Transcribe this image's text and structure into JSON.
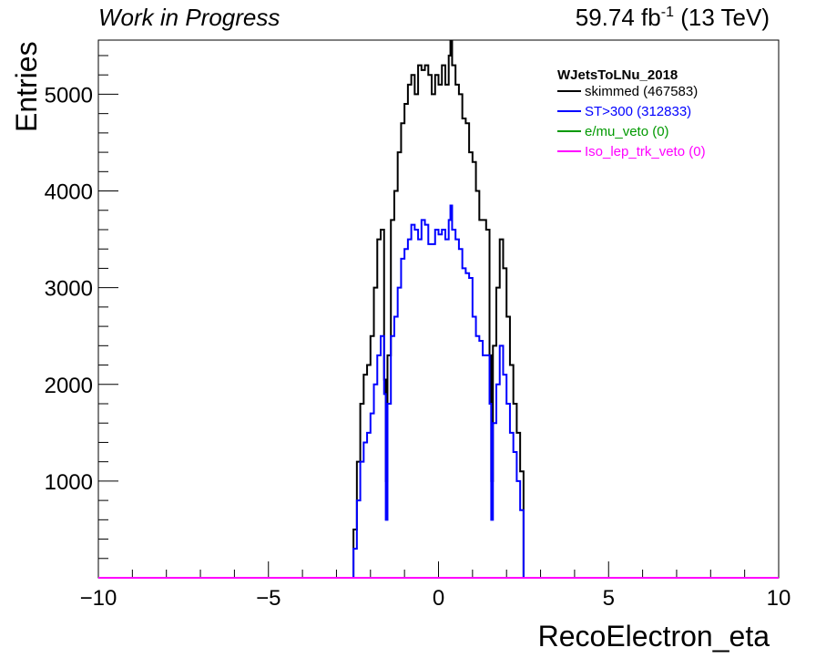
{
  "header": {
    "left": "Work in Progress",
    "lumi_value": "59.74 fb",
    "lumi_exp": "-1",
    "lumi_energy": " (13 TeV)"
  },
  "chart_data": {
    "type": "line",
    "xlabel": "RecoElectron_eta",
    "ylabel": "Entries",
    "xlim": [
      -10,
      10
    ],
    "ylim": [
      0,
      5560
    ],
    "x_ticks": [
      -10,
      -5,
      0,
      5,
      10
    ],
    "x_tick_labels": [
      "−10",
      "−5",
      "0",
      "5",
      "10"
    ],
    "y_ticks": [
      1000,
      2000,
      3000,
      4000,
      5000
    ],
    "y_tick_labels": [
      "1000",
      "2000",
      "3000",
      "4000",
      "5000"
    ],
    "grid": false,
    "legend_title": "WJetsToLNu_2018",
    "legend_position": "top-right",
    "series": [
      {
        "name": "skimmed (467583)",
        "color": "#000000",
        "x": [
          -2.5,
          -2.4,
          -2.3,
          -2.2,
          -2.1,
          -2.0,
          -1.9,
          -1.8,
          -1.7,
          -1.6,
          -1.55,
          -1.5,
          -1.4,
          -1.3,
          -1.2,
          -1.1,
          -1.0,
          -0.9,
          -0.8,
          -0.7,
          -0.6,
          -0.5,
          -0.4,
          -0.3,
          -0.2,
          -0.1,
          0.0,
          0.1,
          0.2,
          0.3,
          0.35,
          0.4,
          0.5,
          0.6,
          0.7,
          0.8,
          0.9,
          1.0,
          1.1,
          1.2,
          1.3,
          1.4,
          1.5,
          1.55,
          1.6,
          1.7,
          1.8,
          1.9,
          2.0,
          2.1,
          2.2,
          2.3,
          2.4,
          2.5
        ],
        "y": [
          500,
          1200,
          1800,
          2100,
          2200,
          2500,
          3000,
          3500,
          3600,
          2050,
          1000,
          2300,
          3700,
          4000,
          4400,
          4700,
          4900,
          5100,
          5200,
          5000,
          5300,
          5250,
          5300,
          5200,
          5000,
          5200,
          5100,
          5300,
          5100,
          5400,
          5550,
          5300,
          5100,
          5000,
          4750,
          4700,
          4400,
          4300,
          4000,
          3700,
          3700,
          3600,
          2300,
          1000,
          2400,
          3000,
          3500,
          3200,
          2700,
          2200,
          1800,
          1500,
          1100,
          0
        ]
      },
      {
        "name": "ST>300 (312833)",
        "color": "#0000ff",
        "x": [
          -2.5,
          -2.4,
          -2.3,
          -2.2,
          -2.1,
          -2.0,
          -1.9,
          -1.8,
          -1.7,
          -1.6,
          -1.55,
          -1.5,
          -1.4,
          -1.3,
          -1.2,
          -1.1,
          -1.0,
          -0.9,
          -0.8,
          -0.7,
          -0.6,
          -0.5,
          -0.4,
          -0.3,
          -0.2,
          -0.1,
          0.0,
          0.1,
          0.2,
          0.3,
          0.35,
          0.4,
          0.5,
          0.6,
          0.7,
          0.8,
          0.9,
          1.0,
          1.1,
          1.2,
          1.3,
          1.4,
          1.5,
          1.55,
          1.6,
          1.7,
          1.8,
          1.9,
          2.0,
          2.1,
          2.2,
          2.3,
          2.4,
          2.5
        ],
        "y": [
          300,
          800,
          1200,
          1400,
          1500,
          1700,
          2000,
          2300,
          2500,
          1900,
          600,
          1800,
          2500,
          2700,
          3000,
          3300,
          3400,
          3500,
          3650,
          3600,
          3500,
          3700,
          3650,
          3450,
          3450,
          3600,
          3550,
          3600,
          3500,
          3700,
          3850,
          3600,
          3500,
          3400,
          3200,
          3150,
          3100,
          2700,
          2500,
          2450,
          2300,
          2300,
          1800,
          600,
          1600,
          2000,
          2400,
          2100,
          1800,
          1500,
          1300,
          1000,
          700,
          0
        ]
      },
      {
        "name": "e/mu_veto (0)",
        "color": "#009900",
        "x": [
          -10,
          10
        ],
        "y": [
          0,
          0
        ]
      },
      {
        "name": "Iso_lep_trk_veto (0)",
        "color": "#ff00ff",
        "x": [
          -10,
          10
        ],
        "y": [
          0,
          0
        ]
      }
    ]
  }
}
